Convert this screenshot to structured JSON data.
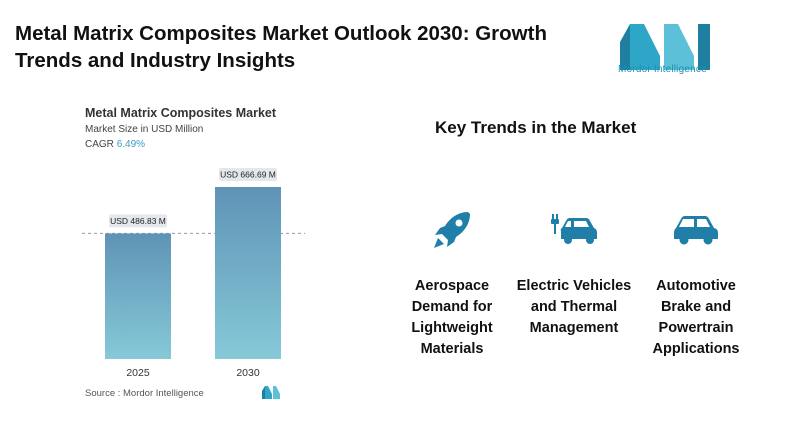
{
  "page": {
    "title": "Metal Matrix Composites Market Outlook 2030: Growth Trends and Industry Insights",
    "brand": "Mordor Intelligence",
    "source": "Source :  Mordor Intelligence"
  },
  "chart_header": {
    "title": "Metal Matrix Composites Market",
    "subtitle": "Market Size in USD Million",
    "cagr_label": "CAGR",
    "cagr_value": "6.49%"
  },
  "chart_data": {
    "type": "bar",
    "categories": [
      "2025",
      "2030"
    ],
    "values": [
      486.83,
      666.69
    ],
    "data_labels": [
      "USD 486.83 M",
      "USD 666.69 M"
    ],
    "title": "Metal Matrix Composites Market",
    "ylabel": "Market Size in USD Million",
    "ylim": [
      0,
      666.69
    ],
    "grid": false,
    "reference_line": "dashed line at 2025 value",
    "colors": {
      "bar_top": "#5f93b6",
      "bar_bottom": "#86c9d7"
    }
  },
  "key_trends": {
    "title": "Key Trends in the Market",
    "items": [
      {
        "icon": "rocket-icon",
        "label": "Aerospace Demand for Lightweight Materials"
      },
      {
        "icon": "electric-car-icon",
        "label": "Electric Vehicles and Thermal Management"
      },
      {
        "icon": "car-icon",
        "label": "Automotive Brake and Powertrain Applications"
      }
    ],
    "icon_color": "#1f7fa8"
  }
}
